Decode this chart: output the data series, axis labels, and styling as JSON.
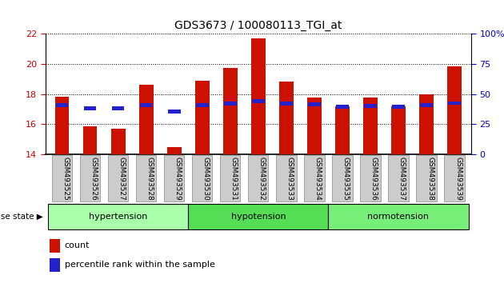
{
  "title": "GDS3673 / 100080113_TGI_at",
  "samples": [
    "GSM493525",
    "GSM493526",
    "GSM493527",
    "GSM493528",
    "GSM493529",
    "GSM493530",
    "GSM493531",
    "GSM493532",
    "GSM493533",
    "GSM493534",
    "GSM493535",
    "GSM493536",
    "GSM493537",
    "GSM493538",
    "GSM493539"
  ],
  "red_values": [
    17.8,
    15.85,
    15.7,
    18.6,
    14.45,
    18.9,
    19.75,
    21.7,
    18.85,
    17.75,
    17.2,
    17.75,
    17.2,
    18.0,
    19.85
  ],
  "blue_values": [
    17.25,
    17.05,
    17.05,
    17.25,
    16.85,
    17.25,
    17.35,
    17.55,
    17.35,
    17.3,
    17.15,
    17.2,
    17.15,
    17.25,
    17.4
  ],
  "ylim_left": [
    14,
    22
  ],
  "ylim_right": [
    0,
    100
  ],
  "yticks_left": [
    14,
    16,
    18,
    20,
    22
  ],
  "yticks_right": [
    0,
    25,
    50,
    75,
    100
  ],
  "groups": [
    {
      "label": "hypertension",
      "start": 0,
      "end": 5,
      "color": "#aaffaa"
    },
    {
      "label": "hypotension",
      "start": 5,
      "end": 10,
      "color": "#55dd55"
    },
    {
      "label": "normotension",
      "start": 10,
      "end": 15,
      "color": "#77ee77"
    }
  ],
  "bar_color": "#cc1100",
  "blue_color": "#2222cc",
  "bar_width": 0.5,
  "tick_bg_color": "#cccccc",
  "legend_items": [
    "count",
    "percentile rank within the sample"
  ],
  "disease_state_label": "disease state",
  "left_tick_color": "#cc0000",
  "right_tick_color": "#0000cc"
}
